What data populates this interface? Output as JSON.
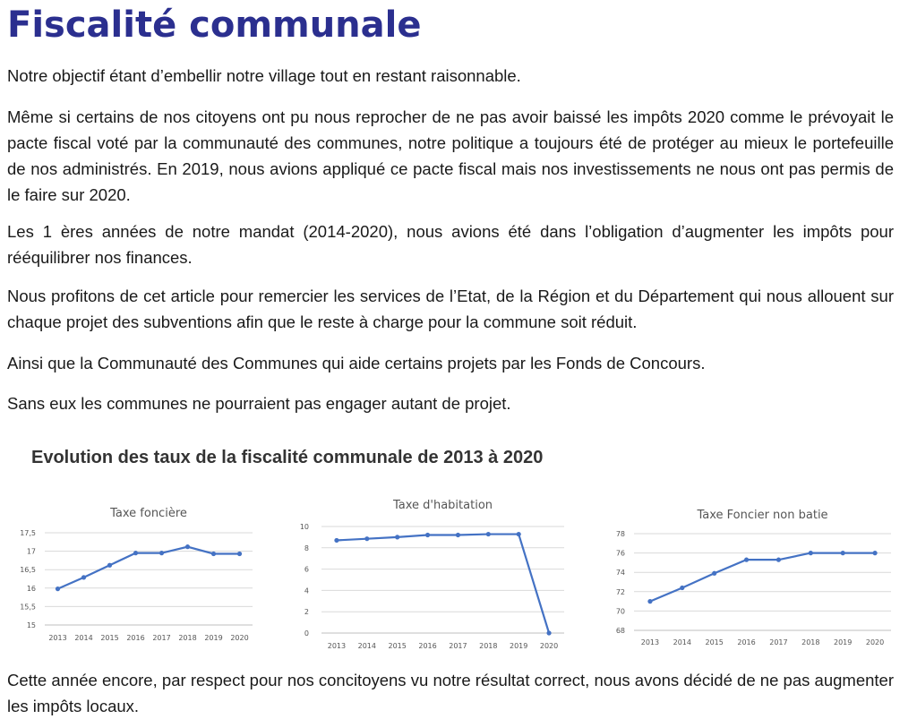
{
  "title": "Fiscalité communale",
  "paragraphs": [
    "Notre objectif étant d’embellir notre village tout en restant raisonnable.",
    "Même si certains de nos citoyens ont pu nous reprocher de ne pas avoir baissé les impôts 2020 comme le pré­voyait le pacte fiscal voté par la communauté des communes, notre politique a toujours été de protéger au mieux le portefeuille de nos administrés. En 2019, nous avions appliqué ce pacte fiscal mais nos investissements ne nous ont pas permis de le faire sur 2020.",
    "Les 1 ères années de notre mandat (2014-2020), nous avions été dans l’obligation d’augmenter les impôts pour rééquilibrer nos finances.",
    "Nous profitons de cet article pour remercier les services de l’Etat, de la Région et du Département qui nous al­louent sur chaque projet des subventions afin que le reste à charge pour la commune soit réduit.",
    "Ainsi que la Communauté des Communes qui aide certains projets par les Fonds de Concours.",
    "Sans eux les communes ne pourraient pas engager autant de projet."
  ],
  "section_title": "Evolution des taux de la fiscalité communale de 2013 à 2020",
  "closing": " Cette année encore, par respect pour nos concitoyens vu notre résultat correct, nous avons décidé de ne pas aug­menter les impôts locaux.",
  "colors": {
    "title": "#2b2f8f",
    "series": "#4472c4"
  },
  "chart_data": [
    {
      "type": "line",
      "title": "Taxe foncière",
      "x": [
        "2013",
        "2014",
        "2015",
        "2016",
        "2017",
        "2018",
        "2019",
        "2020"
      ],
      "values": [
        15.98,
        16.29,
        16.62,
        16.95,
        16.95,
        17.12,
        16.93,
        16.93
      ],
      "ylim": [
        15,
        17.5
      ],
      "yticks": [
        "15",
        "15,5",
        "16",
        "16,5",
        "17",
        "17,5"
      ],
      "grid": true
    },
    {
      "type": "line",
      "title": "Taxe d'habitation",
      "x": [
        "2013",
        "2014",
        "2015",
        "2016",
        "2017",
        "2018",
        "2019",
        "2020"
      ],
      "values": [
        8.7,
        8.85,
        9.0,
        9.2,
        9.2,
        9.28,
        9.28,
        0
      ],
      "ylim": [
        0,
        10
      ],
      "yticks": [
        "0",
        "2",
        "4",
        "6",
        "8",
        "10"
      ],
      "grid": true
    },
    {
      "type": "line",
      "title": "Taxe Foncier non batie",
      "x": [
        "2013",
        "2014",
        "2015",
        "2016",
        "2017",
        "2018",
        "2019",
        "2020"
      ],
      "values": [
        71.0,
        72.4,
        73.9,
        75.3,
        75.3,
        76.0,
        76.0,
        76.0
      ],
      "ylim": [
        68,
        78
      ],
      "yticks": [
        "68",
        "70",
        "72",
        "74",
        "76",
        "78"
      ],
      "grid": true
    }
  ]
}
